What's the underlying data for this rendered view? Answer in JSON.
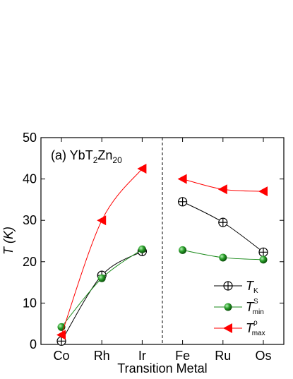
{
  "chart_data": {
    "type": "line",
    "annotation": [
      "(a) YbT",
      "2",
      "Zn",
      "20"
    ],
    "x_label": "Transition Metal",
    "y_label": "T (K)",
    "categories": [
      "Co",
      "Rh",
      "Ir",
      "Fe",
      "Ru",
      "Os"
    ],
    "ylim": [
      0,
      50
    ],
    "yticks": [
      0,
      10,
      20,
      30,
      40,
      50
    ],
    "series": [
      {
        "name": "T",
        "name_sub": "K",
        "color": "#000000",
        "marker": "circle-plus",
        "values": [
          0.8,
          16.7,
          22.5,
          34.5,
          29.5,
          22.3
        ]
      },
      {
        "name": "T",
        "name_sup": "S",
        "name_sub": "min",
        "color": "#1a8a1a",
        "marker": "sphere",
        "values": [
          4.2,
          16,
          23,
          22.8,
          21,
          20.5
        ]
      },
      {
        "name": "T",
        "name_sup": "ρ",
        "name_sub": "max",
        "color": "#ff0000",
        "marker": "triangle-left",
        "values": [
          2.3,
          30,
          42.5,
          40,
          37.5,
          37
        ]
      }
    ]
  }
}
